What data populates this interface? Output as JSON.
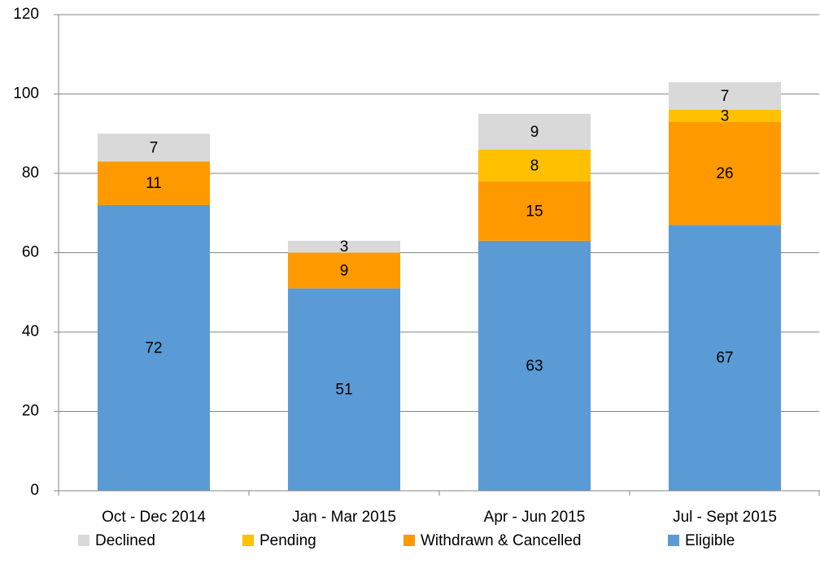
{
  "chart_data": {
    "type": "stacked_bar",
    "categories": [
      "Oct - Dec 2014",
      "Jan - Mar 2015",
      "Apr - Jun 2015",
      "Jul - Sept 2015"
    ],
    "series": [
      {
        "name": "Declined",
        "color": "#d9d9d9",
        "values": [
          7,
          3,
          9,
          7
        ]
      },
      {
        "name": "Pending",
        "color": "#ffc000",
        "values": [
          null,
          null,
          8,
          3
        ]
      },
      {
        "name": "Withdrawn & Cancelled",
        "color": "#ff9900",
        "values": [
          11,
          9,
          15,
          26
        ]
      },
      {
        "name": "Eligible",
        "color": "#5b9bd5",
        "values": [
          72,
          51,
          63,
          67
        ]
      }
    ],
    "ylim": [
      0,
      120
    ],
    "yticks": [
      0,
      20,
      40,
      60,
      80,
      100,
      120
    ],
    "grid": true,
    "legend": "bottom"
  }
}
